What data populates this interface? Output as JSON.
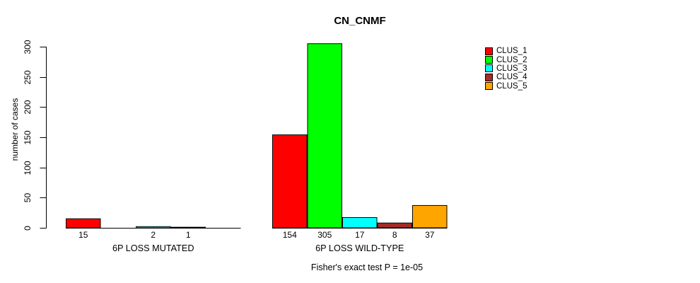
{
  "chart_data": {
    "type": "bar",
    "title": "CN_CNMF",
    "ylabel": "number of cases",
    "ylim": [
      0,
      300
    ],
    "yticks": [
      0,
      50,
      100,
      150,
      200,
      250,
      300
    ],
    "grid": false,
    "legend_position": "right",
    "categories": [
      "6P LOSS MUTATED",
      "6P LOSS WILD-TYPE"
    ],
    "series": [
      {
        "name": "CLUS_1",
        "color": "#ff0000",
        "values": [
          15,
          154
        ]
      },
      {
        "name": "CLUS_2",
        "color": "#00ff00",
        "values": [
          0,
          305
        ]
      },
      {
        "name": "CLUS_3",
        "color": "#00ffff",
        "values": [
          2,
          17
        ]
      },
      {
        "name": "CLUS_4",
        "color": "#a52a2a",
        "values": [
          1,
          8
        ]
      },
      {
        "name": "CLUS_5",
        "color": "#ffa500",
        "values": [
          0,
          37
        ]
      }
    ],
    "bar_value_labels": {
      "6P LOSS MUTATED": [
        "15",
        "",
        "2",
        "1",
        ""
      ],
      "6P LOSS WILD-TYPE": [
        "154",
        "305",
        "17",
        "8",
        "37"
      ]
    },
    "footnote": "Fisher's exact test P = 1e-05"
  }
}
